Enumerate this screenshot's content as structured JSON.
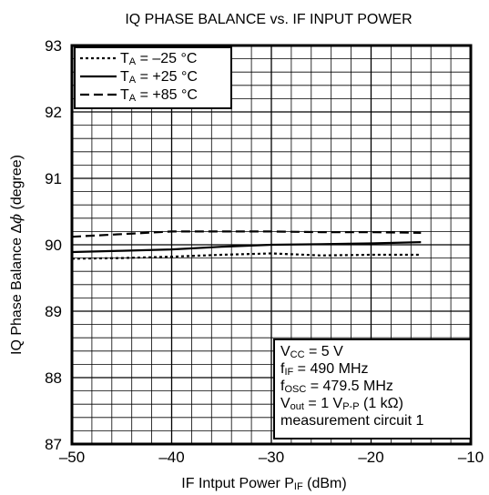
{
  "chart_data": {
    "type": "line",
    "title": "IQ PHASE BALANCE vs. IF INPUT POWER",
    "xlabel": {
      "main": "IF Intput Power P",
      "sub": "IF",
      "unit": " (dBm)"
    },
    "ylabel": {
      "main": "IQ Phase Balance Δ",
      "sym": "ϕ",
      "unit": " (degree)"
    },
    "xlim": [
      -50,
      -10
    ],
    "ylim": [
      87,
      93
    ],
    "grid": true,
    "x_minor_step": 2,
    "y_minor_step": 0.2,
    "x_ticks": [
      {
        "value": -50,
        "label": "–50"
      },
      {
        "value": -40,
        "label": "–40"
      },
      {
        "value": -30,
        "label": "–30"
      },
      {
        "value": -20,
        "label": "–20"
      },
      {
        "value": -10,
        "label": "–10"
      }
    ],
    "y_ticks": [
      {
        "value": 87,
        "label": "87"
      },
      {
        "value": 88,
        "label": "88"
      },
      {
        "value": 89,
        "label": "89"
      },
      {
        "value": 90,
        "label": "90"
      },
      {
        "value": 91,
        "label": "91"
      },
      {
        "value": 92,
        "label": "92"
      },
      {
        "value": 93,
        "label": "93"
      }
    ],
    "legend_position": "top-left",
    "series": [
      {
        "name": {
          "pre": "T",
          "sub": "A",
          "post": " = –25 °C"
        },
        "style": "dotted",
        "x": [
          -50,
          -45,
          -40,
          -35,
          -30,
          -25,
          -20,
          -15
        ],
        "y": [
          89.79,
          89.8,
          89.82,
          89.85,
          89.87,
          89.84,
          89.85,
          89.85
        ]
      },
      {
        "name": {
          "pre": "T",
          "sub": "A",
          "post": " = +25 °C"
        },
        "style": "solid",
        "x": [
          -50,
          -45,
          -40,
          -35,
          -30,
          -25,
          -20,
          -15
        ],
        "y": [
          89.89,
          89.91,
          89.93,
          89.97,
          90.0,
          90.01,
          90.02,
          90.04
        ]
      },
      {
        "name": {
          "pre": "T",
          "sub": "A",
          "post": " = +85 °C"
        },
        "style": "dashed",
        "x": [
          -50,
          -45,
          -40,
          -35,
          -30,
          -25,
          -20,
          -15
        ],
        "y": [
          90.12,
          90.16,
          90.2,
          90.2,
          90.2,
          90.19,
          90.19,
          90.18
        ]
      }
    ],
    "conditions": [
      {
        "pre": "V",
        "sub": "CC",
        "post": " = 5 V"
      },
      {
        "pre": "f",
        "sub": "IF",
        "post": " = 490 MHz"
      },
      {
        "pre": "f",
        "sub": "OSC",
        "post": " = 479.5 MHz"
      },
      {
        "pre": "V",
        "sub": "out",
        "post": " = 1 V",
        "sub2": "P-P",
        "post2": " (1 kΩ)"
      },
      {
        "pre": "measurement circuit 1"
      }
    ]
  }
}
